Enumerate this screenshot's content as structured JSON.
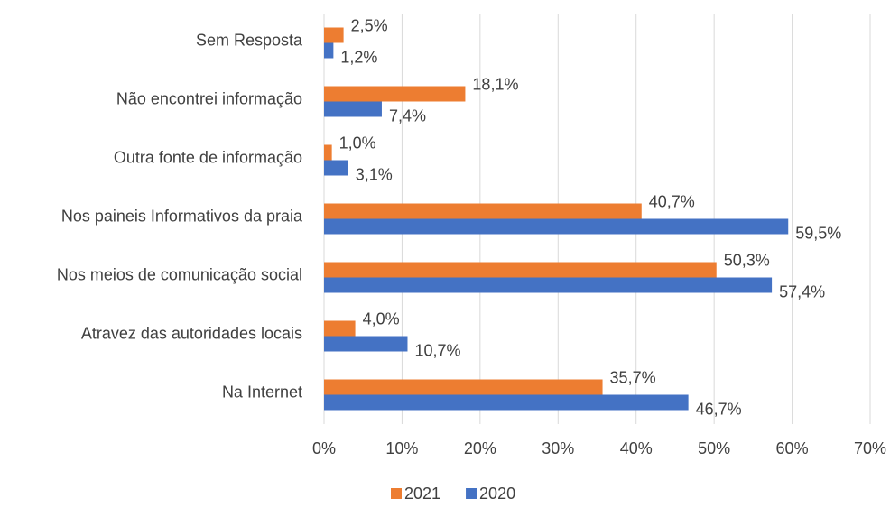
{
  "chart_data": {
    "type": "barh",
    "categories": [
      "Sem Resposta",
      "Não encontrei informação",
      "Outra fonte de informação",
      "Nos paineis Informativos da praia",
      "Nos meios de comunicação social",
      "Atravez das autoridades locais",
      "Na Internet"
    ],
    "series": [
      {
        "name": "2021",
        "color": "#ED7D31",
        "values": [
          2.5,
          18.1,
          1.0,
          40.7,
          50.3,
          4.0,
          35.7
        ],
        "value_labels": [
          "2,5%",
          "18,1%",
          "1,0%",
          "40,7%",
          "50,3%",
          "4,0%",
          "35,7%"
        ]
      },
      {
        "name": "2020",
        "color": "#4472C4",
        "values": [
          1.2,
          7.4,
          3.1,
          59.5,
          57.4,
          10.7,
          46.7
        ],
        "value_labels": [
          "1,2%",
          "7,4%",
          "3,1%",
          "59,5%",
          "57,4%",
          "10,7%",
          "46,7%"
        ]
      }
    ],
    "xlim": [
      0,
      70
    ],
    "xticks": [
      {
        "value": 0,
        "label": "0%"
      },
      {
        "value": 10,
        "label": "10%"
      },
      {
        "value": 20,
        "label": "20%"
      },
      {
        "value": 30,
        "label": "30%"
      },
      {
        "value": 40,
        "label": "40%"
      },
      {
        "value": 50,
        "label": "50%"
      },
      {
        "value": 60,
        "label": "60%"
      },
      {
        "value": 70,
        "label": "70%"
      }
    ],
    "grid": true,
    "legend": "bottom"
  }
}
